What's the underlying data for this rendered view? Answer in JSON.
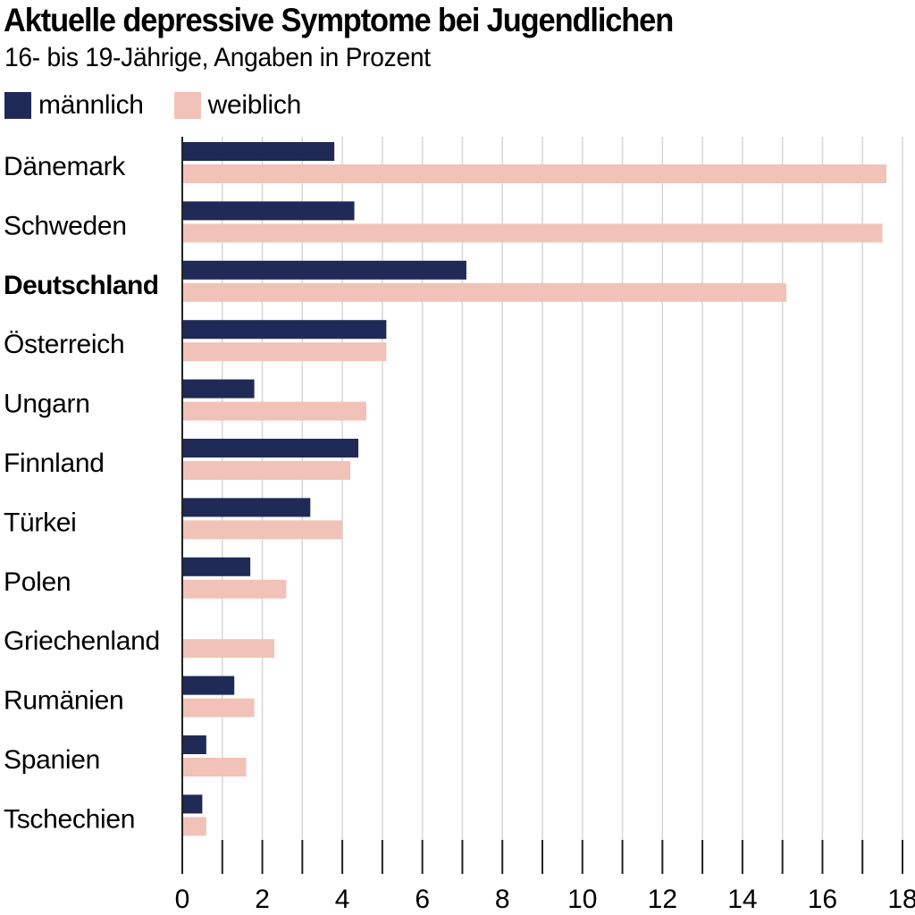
{
  "title": "Aktuelle depressive Symptome bei Jugendlichen",
  "subtitle": "16- bis 19-Jährige, Angaben in Prozent",
  "legend": {
    "male_label": "männlich",
    "female_label": "weiblich"
  },
  "colors": {
    "male": "#1f2a56",
    "female": "#f1c3b8",
    "grid": "#d6d6d6",
    "axis": "#222222"
  },
  "chart_data": {
    "type": "bar",
    "orientation": "horizontal",
    "title": "Aktuelle depressive Symptome bei Jugendlichen",
    "subtitle": "16- bis 19-Jährige, Angaben in Prozent",
    "xlabel": "",
    "ylabel": "",
    "xlim": [
      0,
      18
    ],
    "x_ticks": [
      0,
      2,
      4,
      6,
      8,
      10,
      12,
      14,
      16,
      18
    ],
    "grid": "vertical",
    "legend_position": "top-left",
    "highlighted_category": "Deutschland",
    "categories": [
      "Dänemark",
      "Schweden",
      "Deutschland",
      "Österreich",
      "Ungarn",
      "Finnland",
      "Türkei",
      "Polen",
      "Griechenland",
      "Rumänien",
      "Spanien",
      "Tschechien"
    ],
    "series": [
      {
        "name": "männlich",
        "values": [
          3.8,
          4.3,
          7.1,
          5.1,
          1.8,
          4.4,
          3.2,
          1.7,
          0,
          1.3,
          0.6,
          0.5
        ]
      },
      {
        "name": "weiblich",
        "values": [
          17.6,
          17.5,
          15.1,
          5.1,
          4.6,
          4.2,
          4.0,
          2.6,
          2.3,
          1.8,
          1.6,
          0.6
        ]
      }
    ]
  }
}
